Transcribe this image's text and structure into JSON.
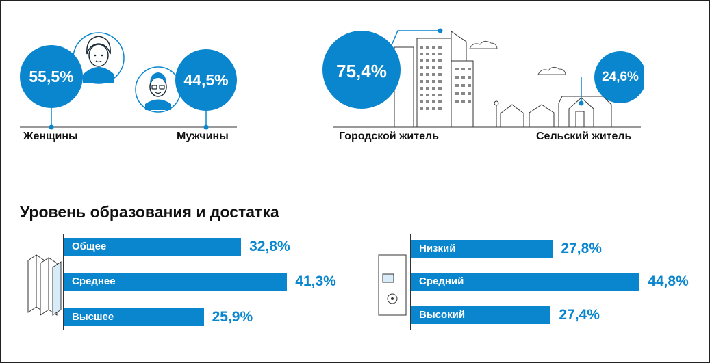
{
  "colors": {
    "accent": "#0a86cf",
    "dark": "#1a2a36"
  },
  "gender": {
    "female": {
      "value": "55,5%",
      "label": "Женщины"
    },
    "male": {
      "value": "44,5%",
      "label": "Мужчины"
    }
  },
  "residence": {
    "urban": {
      "value": "75,4%",
      "label": "Городской житель"
    },
    "rural": {
      "value": "24,6%",
      "label": "Сельский житель"
    }
  },
  "section_title": "Уровень образования и достатка",
  "chart_data": [
    {
      "type": "bar",
      "orientation": "horizontal",
      "categories": [
        "Общее",
        "Среднее",
        "Высшее"
      ],
      "values": [
        32.8,
        41.3,
        25.9
      ],
      "value_labels": [
        "32,8%",
        "41,3%",
        "25,9%"
      ],
      "unit": "%"
    },
    {
      "type": "bar",
      "orientation": "horizontal",
      "categories": [
        "Низкий",
        "Средний",
        "Высокий"
      ],
      "values": [
        27.8,
        44.8,
        27.4
      ],
      "value_labels": [
        "27,8%",
        "44,8%",
        "27,4%"
      ],
      "unit": "%"
    }
  ]
}
